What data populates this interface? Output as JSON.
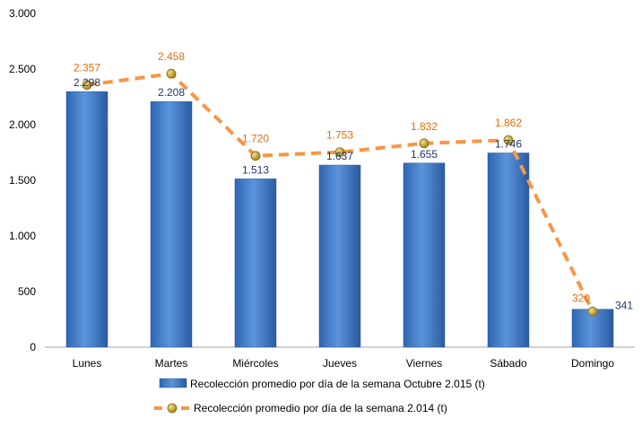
{
  "chart_data": {
    "type": "bar",
    "categories": [
      "Lunes",
      "Martes",
      "Miércoles",
      "Jueves",
      "Viernes",
      "Sábado",
      "Domingo"
    ],
    "series": [
      {
        "name": "Recolección promedio por día de la semana Octubre 2.015 (t)",
        "kind": "bar",
        "color": "#3a78c9",
        "values": [
          2298,
          2208,
          1513,
          1637,
          1655,
          1746,
          341
        ],
        "labels": [
          "2.298",
          "2.208",
          "1.513",
          "1.637",
          "1.655",
          "1.746",
          "341"
        ]
      },
      {
        "name": "Recolección promedio por día de la semana 2.014 (t)",
        "kind": "line",
        "color": "#f79646",
        "line_style": "dashed",
        "marker_color": "#c9a227",
        "values": [
          2357,
          2458,
          1720,
          1753,
          1832,
          1862,
          320
        ],
        "labels": [
          "2.357",
          "2.458",
          "1.720",
          "1.753",
          "1.832",
          "1.862",
          "320"
        ]
      }
    ],
    "ylim": [
      0,
      3000
    ],
    "yticks": [
      0,
      500,
      1000,
      1500,
      2000,
      2500,
      3000
    ],
    "ytick_labels": [
      "0",
      "500",
      "1.000",
      "1.500",
      "2.000",
      "2.500",
      "3.000"
    ],
    "title": "",
    "xlabel": "",
    "ylabel": "",
    "grid": false,
    "legend": "bottom"
  }
}
